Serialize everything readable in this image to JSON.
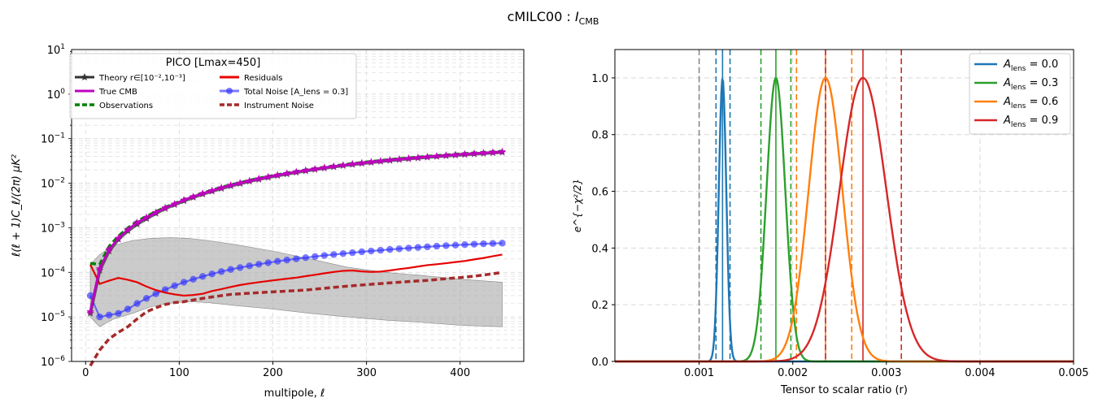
{
  "figure": {
    "title": "cMILC00 : ",
    "title_italic": "I",
    "title_sub": "CMB"
  },
  "chart_data": [
    {
      "type": "line",
      "title": "",
      "xlabel": "multipole, ℓ",
      "ylabel": "ℓ(ℓ + 1)C_ℓ/(2π)  μK²",
      "xlim": [
        -15,
        468
      ],
      "ylim": [
        1e-06,
        10
      ],
      "yscale": "log",
      "grid": true,
      "legend": {
        "placement": "top-left",
        "title": "PICO [Lmax=450]"
      },
      "x_ticks": [
        "0",
        "100",
        "200",
        "300",
        "400"
      ],
      "y_ticks": [
        {
          "base": "10",
          "exp": "−6"
        },
        {
          "base": "10",
          "exp": "−5"
        },
        {
          "base": "10",
          "exp": "−4"
        },
        {
          "base": "10",
          "exp": "−3"
        },
        {
          "base": "10",
          "exp": "−2"
        },
        {
          "base": "10",
          "exp": "−1"
        },
        {
          "base": "10",
          "exp": "0"
        },
        {
          "base": "10",
          "exp": "1"
        }
      ],
      "band": {
        "color": "#a9a9a9",
        "x": [
          5,
          15,
          30,
          50,
          70,
          90,
          110,
          130,
          160,
          200,
          240,
          280,
          320,
          360,
          400,
          445
        ],
        "upper": [
          0.00015,
          0.00025,
          0.0004,
          0.00052,
          0.00058,
          0.0006,
          0.00058,
          0.00052,
          0.00042,
          0.0003,
          0.0002,
          0.00013,
          0.0001,
          8.5e-05,
          7e-05,
          6e-05
        ],
        "lower": [
          1e-05,
          6e-06,
          9e-06,
          1.2e-05,
          1.7e-05,
          2e-05,
          2.2e-05,
          2.1e-05,
          1.8e-05,
          1.5e-05,
          1.2e-05,
          1e-05,
          8.5e-06,
          7.5e-06,
          6.5e-06,
          6e-06
        ]
      },
      "series": [
        {
          "name": "Theory r∈[10⁻²,10⁻³]",
          "name_tex": "theory",
          "color": "#333333",
          "style": "solid",
          "marker": "star",
          "x": [
            5,
            15,
            25,
            35,
            45,
            55,
            65,
            75,
            85,
            95,
            105,
            115,
            125,
            135,
            145,
            155,
            165,
            175,
            185,
            195,
            205,
            215,
            225,
            235,
            245,
            255,
            265,
            275,
            285,
            295,
            305,
            315,
            325,
            335,
            345,
            355,
            365,
            375,
            385,
            395,
            405,
            415,
            425,
            435,
            445
          ],
          "y": [
            1.2e-05,
            0.00011,
            0.0003,
            0.00055,
            0.00085,
            0.0012,
            0.0016,
            0.0021,
            0.0027,
            0.0033,
            0.004,
            0.0048,
            0.0057,
            0.0066,
            0.0076,
            0.0087,
            0.0098,
            0.011,
            0.0122,
            0.0135,
            0.0148,
            0.0161,
            0.0175,
            0.0189,
            0.0203,
            0.0218,
            0.0233,
            0.0248,
            0.0263,
            0.0278,
            0.0293,
            0.0308,
            0.0323,
            0.0338,
            0.0353,
            0.0368,
            0.0382,
            0.0397,
            0.0411,
            0.0425,
            0.0439,
            0.0453,
            0.0467,
            0.0481,
            0.0495
          ]
        },
        {
          "name": "True CMB",
          "color": "#bf00bf",
          "style": "solid",
          "marker": "star",
          "x": [
            5,
            15,
            25,
            35,
            45,
            55,
            65,
            75,
            85,
            95,
            105,
            115,
            125,
            135,
            145,
            155,
            165,
            175,
            185,
            195,
            205,
            215,
            225,
            235,
            245,
            255,
            265,
            275,
            285,
            295,
            305,
            315,
            325,
            335,
            345,
            355,
            365,
            375,
            385,
            395,
            405,
            415,
            425,
            435,
            445
          ],
          "y": [
            1.3e-05,
            0.00012,
            0.00032,
            0.00058,
            0.0009,
            0.0013,
            0.0017,
            0.0022,
            0.0028,
            0.0034,
            0.0042,
            0.005,
            0.0059,
            0.0068,
            0.0079,
            0.009,
            0.0101,
            0.0113,
            0.0126,
            0.0139,
            0.0152,
            0.0166,
            0.018,
            0.0194,
            0.0209,
            0.0224,
            0.0239,
            0.0254,
            0.027,
            0.0285,
            0.03,
            0.0316,
            0.0331,
            0.0346,
            0.0361,
            0.0377,
            0.0392,
            0.0407,
            0.0421,
            0.0436,
            0.0451,
            0.0465,
            0.0479,
            0.0494,
            0.0508
          ]
        },
        {
          "name": "Observations",
          "color": "#008000",
          "style": "dashed",
          "marker": "none",
          "x": [
            5,
            15,
            25,
            35,
            45,
            55,
            65,
            75,
            85,
            95,
            105,
            115,
            125,
            135,
            145,
            155,
            165,
            175,
            185,
            195,
            205,
            215,
            225,
            235,
            245,
            255,
            265,
            275,
            285,
            295,
            305,
            315,
            325,
            335,
            345,
            355,
            365,
            375,
            385,
            395,
            405,
            415,
            425,
            435,
            445
          ],
          "y": [
            0.00016,
            0.00015,
            0.00038,
            0.00065,
            0.00098,
            0.0014,
            0.0018,
            0.0023,
            0.0029,
            0.0035,
            0.0043,
            0.0051,
            0.006,
            0.007,
            0.0081,
            0.0092,
            0.0103,
            0.0116,
            0.0129,
            0.0142,
            0.0155,
            0.017,
            0.0184,
            0.0199,
            0.0214,
            0.0229,
            0.0245,
            0.026,
            0.0276,
            0.0292,
            0.0308,
            0.0323,
            0.0339,
            0.0355,
            0.037,
            0.0386,
            0.0402,
            0.0417,
            0.0432,
            0.0448,
            0.0463,
            0.0478,
            0.0493,
            0.0508,
            0.0523
          ]
        },
        {
          "name": "Residuals",
          "color": "#e60000",
          "style": "solid",
          "marker": "none",
          "x": [
            5,
            15,
            25,
            35,
            45,
            55,
            65,
            75,
            85,
            95,
            105,
            115,
            125,
            135,
            145,
            155,
            165,
            175,
            185,
            195,
            205,
            215,
            225,
            235,
            245,
            255,
            265,
            275,
            285,
            295,
            305,
            315,
            325,
            335,
            345,
            355,
            365,
            375,
            385,
            395,
            405,
            415,
            425,
            435,
            445
          ],
          "y": [
            0.00015,
            5.5e-05,
            6.5e-05,
            7.5e-05,
            6.8e-05,
            6e-05,
            4.8e-05,
            4e-05,
            3.5e-05,
            3.2e-05,
            3e-05,
            3.1e-05,
            3.3e-05,
            3.8e-05,
            4.2e-05,
            4.7e-05,
            5.2e-05,
            5.6e-05,
            6e-05,
            6.4e-05,
            6.8e-05,
            7.2e-05,
            7.6e-05,
            8.2e-05,
            8.8e-05,
            9.5e-05,
            0.000102,
            0.000108,
            0.00011,
            0.000105,
            0.000102,
            0.000104,
            0.00011,
            0.000118,
            0.000125,
            0.000135,
            0.000145,
            0.000152,
            0.00016,
            0.00017,
            0.00018,
            0.000195,
            0.00021,
            0.00023,
            0.00025
          ]
        },
        {
          "name": "Total Noise [A_lens = 0.3]",
          "color": "#3333ff",
          "style": "solid",
          "marker": "circle",
          "x": [
            5,
            15,
            25,
            35,
            45,
            55,
            65,
            75,
            85,
            95,
            105,
            115,
            125,
            135,
            145,
            155,
            165,
            175,
            185,
            195,
            205,
            215,
            225,
            235,
            245,
            255,
            265,
            275,
            285,
            295,
            305,
            315,
            325,
            335,
            345,
            355,
            365,
            375,
            385,
            395,
            405,
            415,
            425,
            435,
            445
          ],
          "y": [
            3e-05,
            1e-05,
            1.1e-05,
            1.2e-05,
            1.5e-05,
            2e-05,
            2.6e-05,
            3.3e-05,
            4.1e-05,
            5e-05,
            6e-05,
            7e-05,
            8.1e-05,
            9.2e-05,
            0.000104,
            0.000116,
            0.000128,
            0.00014,
            0.000152,
            0.000164,
            0.000177,
            0.000189,
            0.000201,
            0.000214,
            0.000226,
            0.000239,
            0.000251,
            0.000264,
            0.000276,
            0.000289,
            0.000301,
            0.000313,
            0.000326,
            0.000338,
            0.00035,
            0.000362,
            0.000374,
            0.000386,
            0.000397,
            0.000408,
            0.000418,
            0.000428,
            0.000437,
            0.000445,
            0.000452
          ]
        },
        {
          "name": "Instrument Noise",
          "color": "#a52a2a",
          "style": "dashed",
          "marker": "none",
          "x": [
            5,
            15,
            25,
            35,
            45,
            55,
            65,
            75,
            85,
            95,
            105,
            115,
            125,
            135,
            145,
            155,
            165,
            175,
            185,
            195,
            205,
            215,
            225,
            235,
            245,
            255,
            265,
            275,
            285,
            295,
            305,
            315,
            325,
            335,
            345,
            355,
            365,
            375,
            385,
            395,
            405,
            415,
            425,
            435,
            445
          ],
          "y": [
            8e-07,
            1.8e-06,
            3.2e-06,
            4.5e-06,
            6e-06,
            9e-06,
            1.3e-05,
            1.6e-05,
            1.9e-05,
            2.1e-05,
            2.2e-05,
            2.4e-05,
            2.6e-05,
            2.8e-05,
            3e-05,
            3.2e-05,
            3.3e-05,
            3.4e-05,
            3.5e-05,
            3.6e-05,
            3.7e-05,
            3.8e-05,
            3.9e-05,
            4e-05,
            4.2e-05,
            4.4e-05,
            4.6e-05,
            4.8e-05,
            5e-05,
            5.2e-05,
            5.4e-05,
            5.6e-05,
            5.8e-05,
            6e-05,
            6.2e-05,
            6.4e-05,
            6.6e-05,
            6.9e-05,
            7.2e-05,
            7.5e-05,
            7.8e-05,
            8.2e-05,
            8.7e-05,
            9.3e-05,
            0.0001
          ]
        }
      ]
    },
    {
      "type": "line",
      "title": "",
      "xlabel": "Tensor to scalar ratio (r)",
      "ylabel": "e^{−χ²/2}",
      "xlim": [
        0.0001,
        0.005
      ],
      "ylim": [
        0,
        1.1
      ],
      "grid": true,
      "legend": {
        "placement": "top-right"
      },
      "x_ticks": [
        "0.001",
        "0.002",
        "0.003",
        "0.004",
        "0.005"
      ],
      "y_ticks": [
        "0.0",
        "0.2",
        "0.4",
        "0.6",
        "0.8",
        "1.0"
      ],
      "reference_line": {
        "x": 0.001,
        "color": "#888888",
        "style": "dashed"
      },
      "series": [
        {
          "name": "A_lens = 0.0",
          "label_main": "A",
          "label_sub": "lens",
          "label_value": " = 0.0",
          "color": "#1f77b4",
          "peak": 0.00125,
          "sigma": 4e-05,
          "ci": [
            0.00118,
            0.00133
          ]
        },
        {
          "name": "A_lens = 0.3",
          "label_main": "A",
          "label_sub": "lens",
          "label_value": " = 0.3",
          "color": "#2ca02c",
          "peak": 0.00182,
          "sigma": 0.0001,
          "ci": [
            0.00166,
            0.00198
          ]
        },
        {
          "name": "A_lens = 0.6",
          "label_main": "A",
          "label_sub": "lens",
          "label_value": " = 0.6",
          "color": "#ff7f0e",
          "peak": 0.00235,
          "sigma": 0.00018,
          "ci": [
            0.00204,
            0.00263
          ]
        },
        {
          "name": "A_lens = 0.9",
          "label_main": "A",
          "label_sub": "lens",
          "label_value": " = 0.9",
          "color": "#d62728",
          "peak": 0.00275,
          "sigma": 0.00025,
          "ci": [
            0.00235,
            0.00316
          ]
        }
      ]
    }
  ]
}
